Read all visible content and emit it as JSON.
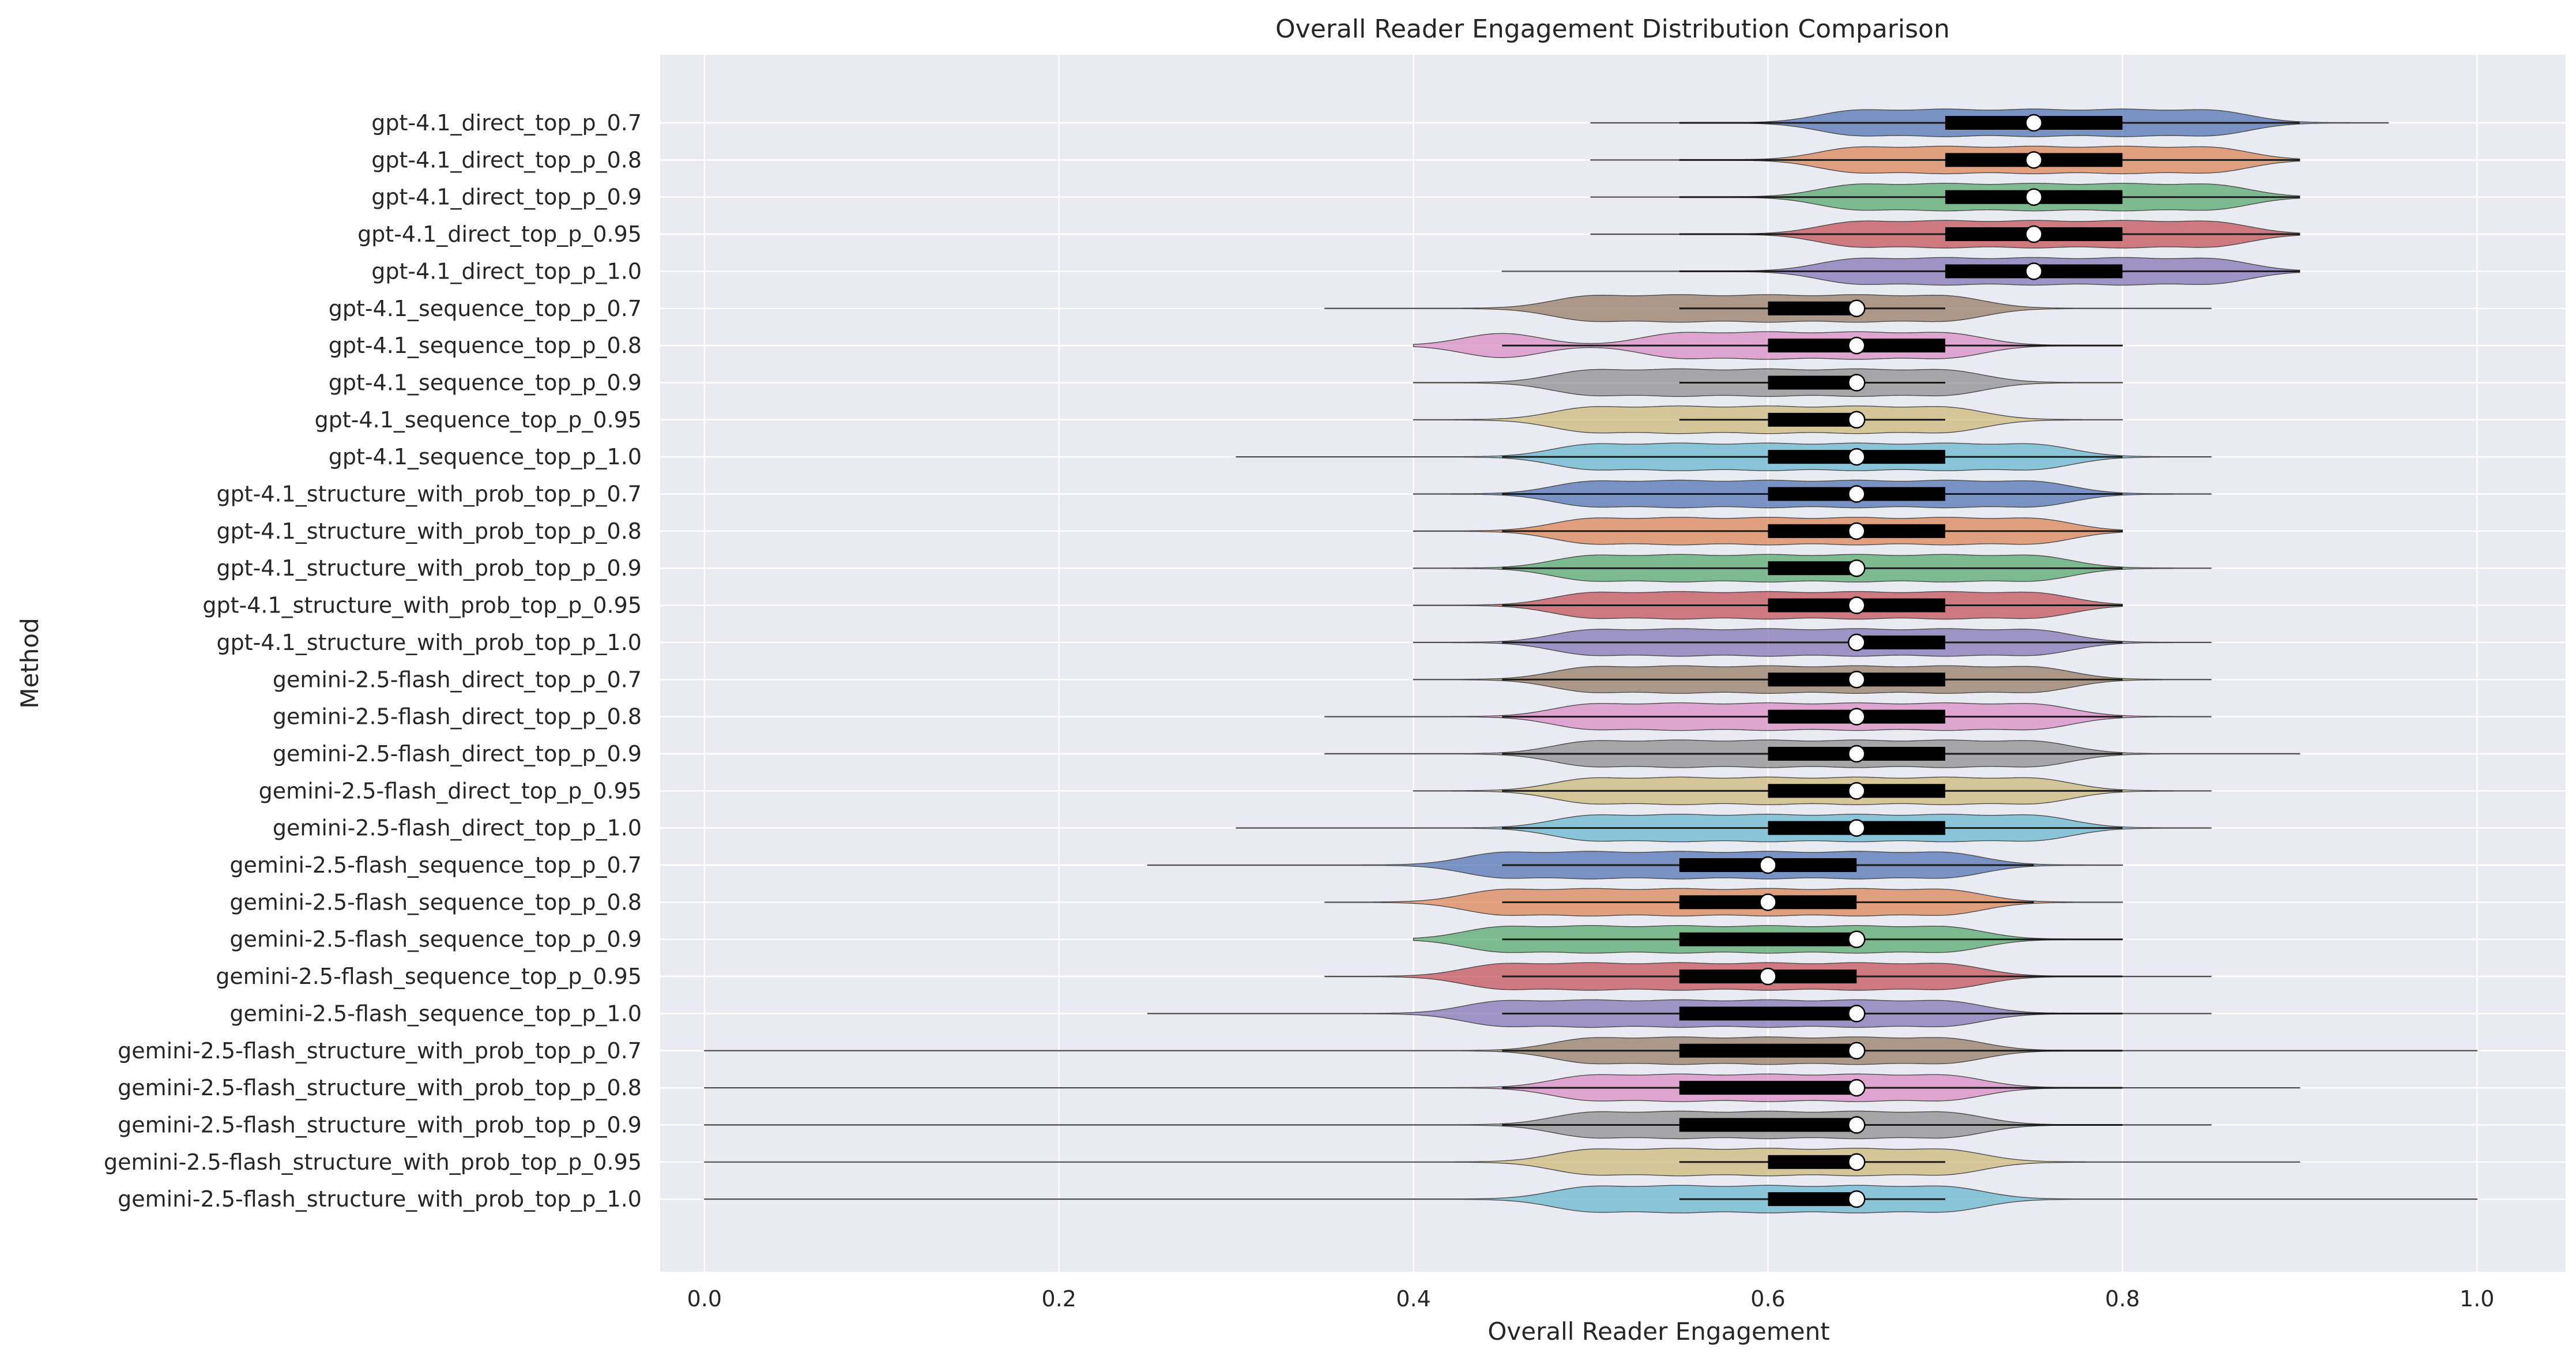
{
  "chart_data": {
    "type": "violin",
    "orientation": "horizontal",
    "title": "Overall Reader Engagement Distribution Comparison",
    "xlabel": "Overall Reader Engagement",
    "ylabel": "Method",
    "xlim": [
      -0.025,
      1.05
    ],
    "xticks": [
      0.0,
      0.2,
      0.4,
      0.6,
      0.8,
      1.0
    ],
    "xtick_labels": [
      "0.0",
      "0.2",
      "0.4",
      "0.6",
      "0.8",
      "1.0"
    ],
    "grid": true,
    "legend": "none",
    "palette": [
      "#4c72b0",
      "#dd8452",
      "#55a868",
      "#c44e52",
      "#8172b3",
      "#937860",
      "#da8bc3",
      "#8c8c8c",
      "#ccb974",
      "#64b5cd"
    ],
    "background": "#eaeaf2",
    "series": [
      {
        "name": "gpt-4.1_direct_top_p_0.7",
        "min": 0.5,
        "q1": 0.7,
        "median": 0.75,
        "q3": 0.8,
        "max": 0.95,
        "whisker_low": 0.55,
        "whisker_high": 0.9,
        "modes": [
          0.65,
          0.7,
          0.75,
          0.8,
          0.85
        ]
      },
      {
        "name": "gpt-4.1_direct_top_p_0.8",
        "min": 0.5,
        "q1": 0.7,
        "median": 0.75,
        "q3": 0.8,
        "max": 0.9,
        "whisker_low": 0.55,
        "whisker_high": 0.9,
        "modes": [
          0.65,
          0.7,
          0.75,
          0.8,
          0.85
        ]
      },
      {
        "name": "gpt-4.1_direct_top_p_0.9",
        "min": 0.5,
        "q1": 0.7,
        "median": 0.75,
        "q3": 0.8,
        "max": 0.9,
        "whisker_low": 0.55,
        "whisker_high": 0.9,
        "modes": [
          0.65,
          0.7,
          0.75,
          0.8,
          0.85
        ]
      },
      {
        "name": "gpt-4.1_direct_top_p_0.95",
        "min": 0.5,
        "q1": 0.7,
        "median": 0.75,
        "q3": 0.8,
        "max": 0.9,
        "whisker_low": 0.55,
        "whisker_high": 0.9,
        "modes": [
          0.65,
          0.7,
          0.75,
          0.8,
          0.85
        ]
      },
      {
        "name": "gpt-4.1_direct_top_p_1.0",
        "min": 0.45,
        "q1": 0.7,
        "median": 0.75,
        "q3": 0.8,
        "max": 0.9,
        "whisker_low": 0.55,
        "whisker_high": 0.9,
        "modes": [
          0.65,
          0.7,
          0.75,
          0.8,
          0.85
        ]
      },
      {
        "name": "gpt-4.1_sequence_top_p_0.7",
        "min": 0.35,
        "q1": 0.6,
        "median": 0.65,
        "q3": 0.65,
        "max": 0.85,
        "whisker_low": 0.55,
        "whisker_high": 0.7,
        "modes": [
          0.5,
          0.55,
          0.6,
          0.65,
          0.7
        ]
      },
      {
        "name": "gpt-4.1_sequence_top_p_0.8",
        "min": 0.4,
        "q1": 0.6,
        "median": 0.65,
        "q3": 0.7,
        "max": 0.8,
        "whisker_low": 0.45,
        "whisker_high": 0.8,
        "modes": [
          0.45,
          0.55,
          0.6,
          0.65,
          0.7
        ]
      },
      {
        "name": "gpt-4.1_sequence_top_p_0.9",
        "min": 0.4,
        "q1": 0.6,
        "median": 0.65,
        "q3": 0.65,
        "max": 0.8,
        "whisker_low": 0.55,
        "whisker_high": 0.7,
        "modes": [
          0.5,
          0.55,
          0.6,
          0.65,
          0.7
        ]
      },
      {
        "name": "gpt-4.1_sequence_top_p_0.95",
        "min": 0.4,
        "q1": 0.6,
        "median": 0.65,
        "q3": 0.65,
        "max": 0.8,
        "whisker_low": 0.55,
        "whisker_high": 0.7,
        "modes": [
          0.5,
          0.55,
          0.6,
          0.65,
          0.7
        ]
      },
      {
        "name": "gpt-4.1_sequence_top_p_1.0",
        "min": 0.3,
        "q1": 0.6,
        "median": 0.65,
        "q3": 0.7,
        "max": 0.85,
        "whisker_low": 0.45,
        "whisker_high": 0.8,
        "modes": [
          0.5,
          0.55,
          0.6,
          0.65,
          0.7,
          0.75
        ]
      },
      {
        "name": "gpt-4.1_structure_with_prob_top_p_0.7",
        "min": 0.4,
        "q1": 0.6,
        "median": 0.65,
        "q3": 0.7,
        "max": 0.85,
        "whisker_low": 0.45,
        "whisker_high": 0.8,
        "modes": [
          0.5,
          0.55,
          0.6,
          0.65,
          0.7,
          0.75
        ]
      },
      {
        "name": "gpt-4.1_structure_with_prob_top_p_0.8",
        "min": 0.4,
        "q1": 0.6,
        "median": 0.65,
        "q3": 0.7,
        "max": 0.8,
        "whisker_low": 0.45,
        "whisker_high": 0.8,
        "modes": [
          0.5,
          0.55,
          0.6,
          0.65,
          0.7,
          0.75
        ]
      },
      {
        "name": "gpt-4.1_structure_with_prob_top_p_0.9",
        "min": 0.4,
        "q1": 0.6,
        "median": 0.65,
        "q3": 0.65,
        "max": 0.85,
        "whisker_low": 0.45,
        "whisker_high": 0.8,
        "modes": [
          0.5,
          0.55,
          0.6,
          0.65,
          0.7,
          0.75
        ]
      },
      {
        "name": "gpt-4.1_structure_with_prob_top_p_0.95",
        "min": 0.4,
        "q1": 0.6,
        "median": 0.65,
        "q3": 0.7,
        "max": 0.8,
        "whisker_low": 0.45,
        "whisker_high": 0.8,
        "modes": [
          0.5,
          0.55,
          0.6,
          0.65,
          0.7,
          0.75
        ]
      },
      {
        "name": "gpt-4.1_structure_with_prob_top_p_1.0",
        "min": 0.4,
        "q1": 0.65,
        "median": 0.65,
        "q3": 0.7,
        "max": 0.85,
        "whisker_low": 0.45,
        "whisker_high": 0.8,
        "modes": [
          0.5,
          0.55,
          0.6,
          0.65,
          0.7,
          0.75
        ]
      },
      {
        "name": "gemini-2.5-flash_direct_top_p_0.7",
        "min": 0.4,
        "q1": 0.6,
        "median": 0.65,
        "q3": 0.7,
        "max": 0.85,
        "whisker_low": 0.45,
        "whisker_high": 0.8,
        "modes": [
          0.5,
          0.55,
          0.6,
          0.65,
          0.7,
          0.75
        ]
      },
      {
        "name": "gemini-2.5-flash_direct_top_p_0.8",
        "min": 0.35,
        "q1": 0.6,
        "median": 0.65,
        "q3": 0.7,
        "max": 0.85,
        "whisker_low": 0.45,
        "whisker_high": 0.8,
        "modes": [
          0.5,
          0.55,
          0.6,
          0.65,
          0.7,
          0.75
        ]
      },
      {
        "name": "gemini-2.5-flash_direct_top_p_0.9",
        "min": 0.35,
        "q1": 0.6,
        "median": 0.65,
        "q3": 0.7,
        "max": 0.9,
        "whisker_low": 0.45,
        "whisker_high": 0.8,
        "modes": [
          0.5,
          0.55,
          0.6,
          0.65,
          0.7,
          0.75
        ]
      },
      {
        "name": "gemini-2.5-flash_direct_top_p_0.95",
        "min": 0.4,
        "q1": 0.6,
        "median": 0.65,
        "q3": 0.7,
        "max": 0.85,
        "whisker_low": 0.45,
        "whisker_high": 0.8,
        "modes": [
          0.5,
          0.55,
          0.6,
          0.65,
          0.7,
          0.75
        ]
      },
      {
        "name": "gemini-2.5-flash_direct_top_p_1.0",
        "min": 0.3,
        "q1": 0.6,
        "median": 0.65,
        "q3": 0.7,
        "max": 0.85,
        "whisker_low": 0.45,
        "whisker_high": 0.8,
        "modes": [
          0.5,
          0.55,
          0.6,
          0.65,
          0.7,
          0.75
        ]
      },
      {
        "name": "gemini-2.5-flash_sequence_top_p_0.7",
        "min": 0.25,
        "q1": 0.55,
        "median": 0.6,
        "q3": 0.65,
        "max": 0.8,
        "whisker_low": 0.45,
        "whisker_high": 0.75,
        "modes": [
          0.45,
          0.5,
          0.55,
          0.6,
          0.65,
          0.7
        ]
      },
      {
        "name": "gemini-2.5-flash_sequence_top_p_0.8",
        "min": 0.35,
        "q1": 0.55,
        "median": 0.6,
        "q3": 0.65,
        "max": 0.8,
        "whisker_low": 0.45,
        "whisker_high": 0.75,
        "modes": [
          0.45,
          0.5,
          0.55,
          0.6,
          0.65,
          0.7
        ]
      },
      {
        "name": "gemini-2.5-flash_sequence_top_p_0.9",
        "min": 0.4,
        "q1": 0.55,
        "median": 0.65,
        "q3": 0.65,
        "max": 0.8,
        "whisker_low": 0.45,
        "whisker_high": 0.8,
        "modes": [
          0.45,
          0.5,
          0.55,
          0.6,
          0.65,
          0.7
        ]
      },
      {
        "name": "gemini-2.5-flash_sequence_top_p_0.95",
        "min": 0.35,
        "q1": 0.55,
        "median": 0.6,
        "q3": 0.65,
        "max": 0.85,
        "whisker_low": 0.45,
        "whisker_high": 0.8,
        "modes": [
          0.45,
          0.5,
          0.55,
          0.6,
          0.65,
          0.7
        ]
      },
      {
        "name": "gemini-2.5-flash_sequence_top_p_1.0",
        "min": 0.25,
        "q1": 0.55,
        "median": 0.65,
        "q3": 0.65,
        "max": 0.85,
        "whisker_low": 0.45,
        "whisker_high": 0.8,
        "modes": [
          0.45,
          0.5,
          0.55,
          0.6,
          0.65,
          0.7
        ]
      },
      {
        "name": "gemini-2.5-flash_structure_with_prob_top_p_0.7",
        "min": 0.0,
        "q1": 0.55,
        "median": 0.65,
        "q3": 0.65,
        "max": 1.0,
        "whisker_low": 0.45,
        "whisker_high": 0.8,
        "modes": [
          0.5,
          0.55,
          0.6,
          0.65,
          0.7
        ]
      },
      {
        "name": "gemini-2.5-flash_structure_with_prob_top_p_0.8",
        "min": 0.0,
        "q1": 0.55,
        "median": 0.65,
        "q3": 0.65,
        "max": 0.9,
        "whisker_low": 0.45,
        "whisker_high": 0.8,
        "modes": [
          0.5,
          0.55,
          0.6,
          0.65,
          0.7
        ]
      },
      {
        "name": "gemini-2.5-flash_structure_with_prob_top_p_0.9",
        "min": 0.0,
        "q1": 0.55,
        "median": 0.65,
        "q3": 0.65,
        "max": 0.85,
        "whisker_low": 0.45,
        "whisker_high": 0.8,
        "modes": [
          0.5,
          0.55,
          0.6,
          0.65,
          0.7
        ]
      },
      {
        "name": "gemini-2.5-flash_structure_with_prob_top_p_0.95",
        "min": 0.0,
        "q1": 0.6,
        "median": 0.65,
        "q3": 0.65,
        "max": 0.9,
        "whisker_low": 0.55,
        "whisker_high": 0.7,
        "modes": [
          0.5,
          0.55,
          0.6,
          0.65,
          0.7
        ]
      },
      {
        "name": "gemini-2.5-flash_structure_with_prob_top_p_1.0",
        "min": 0.0,
        "q1": 0.6,
        "median": 0.65,
        "q3": 0.65,
        "max": 1.0,
        "whisker_low": 0.55,
        "whisker_high": 0.7,
        "modes": [
          0.5,
          0.55,
          0.6,
          0.65,
          0.7
        ]
      }
    ]
  }
}
